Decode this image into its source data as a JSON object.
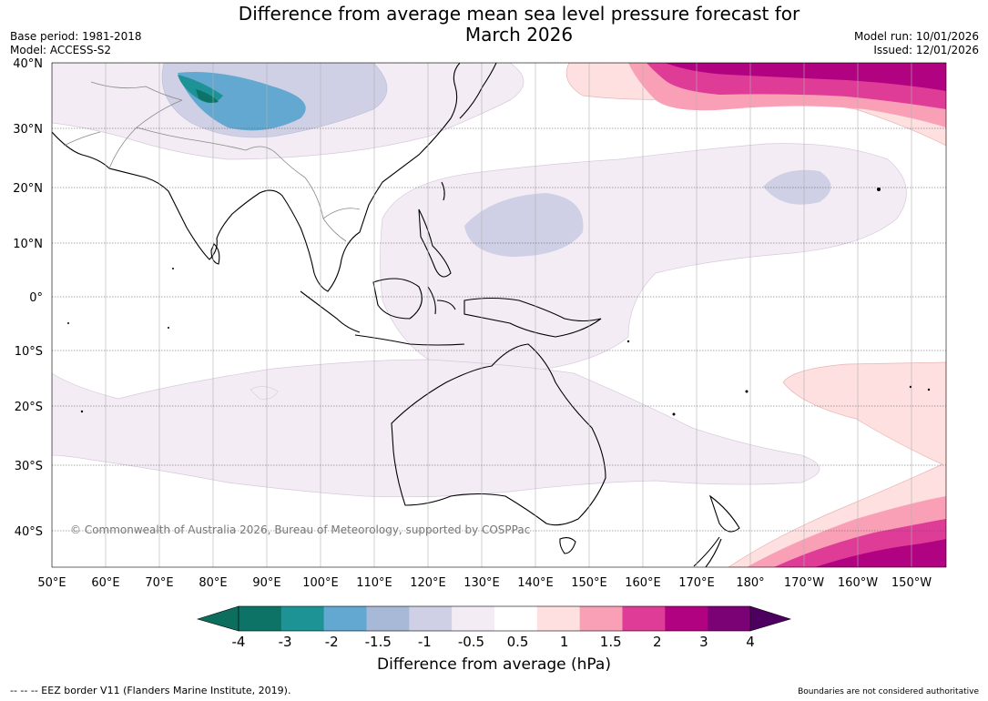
{
  "header": {
    "title_line1": "Difference from average mean sea level pressure forecast for",
    "title_line2": "March 2026",
    "base_period": "Base period: 1981-2018",
    "model": "Model: ACCESS-S2",
    "model_run": "Model run: 10/01/2026",
    "issued": "Issued: 12/01/2026"
  },
  "map": {
    "lat_labels": [
      "40°N",
      "30°N",
      "20°N",
      "10°N",
      "0°",
      "10°S",
      "20°S",
      "30°S",
      "40°S"
    ],
    "lon_labels": [
      "50°E",
      "60°E",
      "70°E",
      "80°E",
      "90°E",
      "100°E",
      "110°E",
      "120°E",
      "130°E",
      "140°E",
      "150°E",
      "160°E",
      "170°E",
      "180°",
      "170°W",
      "160°W",
      "150°W"
    ],
    "copyright": "© Commonwealth of Australia 2026, Bureau of Meteorology, supported by COSPPac"
  },
  "colorbar": {
    "title": "Difference from average (hPa)",
    "tick_labels": [
      "-4",
      "-3",
      "-2",
      "-1.5",
      "-1",
      "-0.5",
      "0.5",
      "1",
      "1.5",
      "2",
      "3",
      "4"
    ],
    "colors": [
      "#0d7366",
      "#1e9396",
      "#62a8d0",
      "#a7b9d6",
      "#cfd0e5",
      "#f3ecf5",
      "#ffffff",
      "#fde0df",
      "#f9a0b7",
      "#df3c98",
      "#b10381",
      "#7b0274"
    ],
    "low_end_color": "#0d6e5e",
    "high_end_color": "#4d0060"
  },
  "footer": {
    "eez_note": "--  --  -- EEZ border V11 (Flanders Marine Institute, 2019).",
    "boundaries_note": "Boundaries are not considered authoritative"
  }
}
